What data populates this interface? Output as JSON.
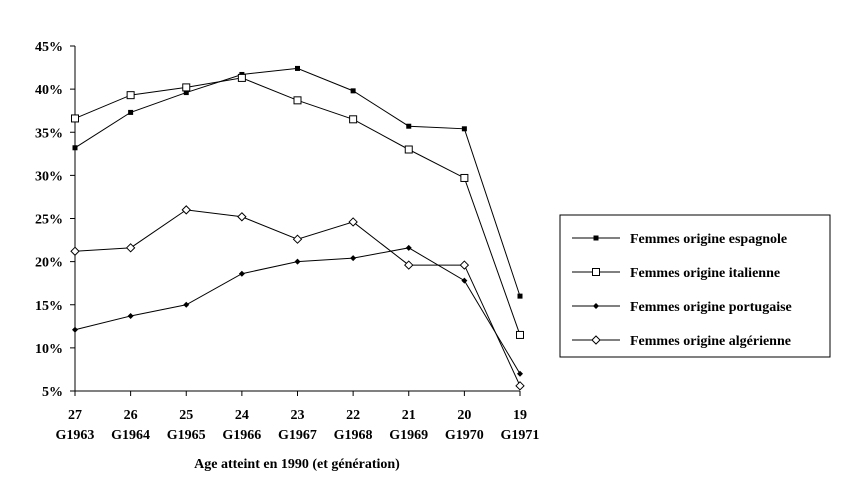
{
  "chart_data": {
    "type": "line",
    "categories": [
      {
        "age": "27",
        "gen": "G1963"
      },
      {
        "age": "26",
        "gen": "G1964"
      },
      {
        "age": "25",
        "gen": "G1965"
      },
      {
        "age": "24",
        "gen": "G1966"
      },
      {
        "age": "23",
        "gen": "G1967"
      },
      {
        "age": "22",
        "gen": "G1968"
      },
      {
        "age": "21",
        "gen": "G1969"
      },
      {
        "age": "20",
        "gen": "G1970"
      },
      {
        "age": "19",
        "gen": "G1971"
      }
    ],
    "xlabel": "Age atteint en 1990 (et génération)",
    "ylabel": "",
    "ylim": [
      5,
      45
    ],
    "yticks": [
      "5%",
      "10%",
      "15%",
      "20%",
      "25%",
      "30%",
      "35%",
      "40%",
      "45%"
    ],
    "legend_position": "right",
    "grid": false,
    "series": [
      {
        "name": "Femmes origine espagnole",
        "marker": "filled-square",
        "values": [
          33.2,
          37.3,
          39.6,
          41.7,
          42.4,
          39.8,
          35.7,
          35.4,
          16.0
        ]
      },
      {
        "name": "Femmes origine italienne",
        "marker": "open-square",
        "values": [
          36.6,
          39.3,
          40.2,
          41.3,
          38.7,
          36.5,
          33.0,
          29.7,
          11.5
        ]
      },
      {
        "name": "Femmes origine portugaise",
        "marker": "filled-diamond",
        "values": [
          12.1,
          13.7,
          15.0,
          18.6,
          20.0,
          20.4,
          21.6,
          17.8,
          7.0
        ]
      },
      {
        "name": "Femmes origine algérienne",
        "marker": "open-diamond",
        "values": [
          21.2,
          21.6,
          26.0,
          25.2,
          22.6,
          24.6,
          19.6,
          19.6,
          5.6
        ]
      }
    ]
  }
}
